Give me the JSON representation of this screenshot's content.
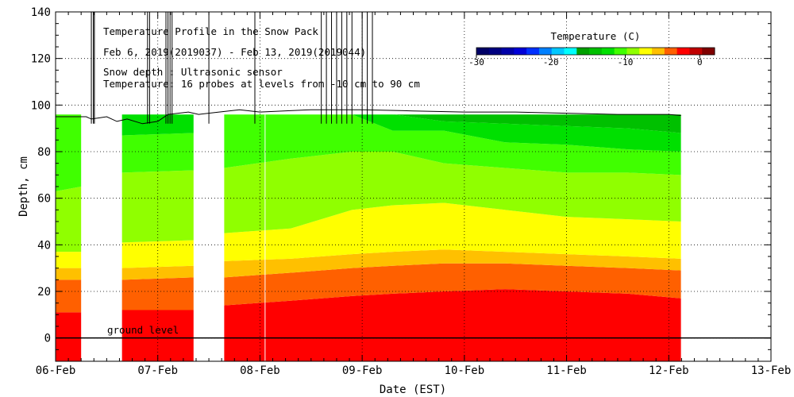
{
  "chart_data": {
    "type": "heatmap",
    "title": "Temperature Profile in the Snow Pack",
    "subtitle": "Feb  6, 2019(2019037) - Feb 13, 2019(2019044)",
    "notes": [
      "Snow depth : Ultrasonic sensor",
      "Temperature: 16 probes at levels from -10 cm to 90 cm"
    ],
    "xlabel": "Date (EST)",
    "ylabel": "Depth, cm",
    "x_tick_labels": [
      "06-Feb",
      "07-Feb",
      "08-Feb",
      "09-Feb",
      "10-Feb",
      "11-Feb",
      "12-Feb",
      "13-Feb"
    ],
    "xlim_days": [
      0,
      7
    ],
    "ylim": [
      -10,
      140
    ],
    "y_ticks": [
      0,
      20,
      40,
      60,
      80,
      100,
      120,
      140
    ],
    "grid": true,
    "ground_level_label": "ground level",
    "ground_level_cm": 0,
    "colorbar": {
      "title": "Temperature (C)",
      "range": [
        -30,
        2
      ],
      "ticks": [
        -30,
        -20,
        -10,
        0
      ],
      "colors": [
        "#000066",
        "#000080",
        "#0000a8",
        "#0000d8",
        "#0030ff",
        "#0080ff",
        "#00c8ff",
        "#00ffff",
        "#00a000",
        "#00c000",
        "#00e000",
        "#40ff00",
        "#90ff00",
        "#ffff00",
        "#ffc000",
        "#ff6000",
        "#ff0000",
        "#c00000",
        "#800000"
      ]
    },
    "temperature_bands": [
      {
        "range_c": "> 0",
        "color": "#ff0000"
      },
      {
        "range_c": "-2 to 0",
        "color": "#ff6000"
      },
      {
        "range_c": "-4 to -2",
        "color": "#ffc000"
      },
      {
        "range_c": "-6 to -4",
        "color": "#ffff00"
      },
      {
        "range_c": "-8 to -6",
        "color": "#90ff00"
      },
      {
        "range_c": "-10 to -8",
        "color": "#40ff00"
      },
      {
        "range_c": "-12 to -10",
        "color": "#00e000"
      },
      {
        "range_c": "-14 to -12",
        "color": "#00c000"
      },
      {
        "range_c": "-16 to -14",
        "color": "#00a000"
      }
    ],
    "data_gaps_days": [
      [
        0.25,
        0.65
      ],
      [
        1.35,
        1.65
      ]
    ],
    "data_end_day": 6.12,
    "profile_top_cm": 96,
    "boundary_order": [
      "red/orange",
      "orange/gold",
      "gold/yellow",
      "yellow/lightgreen",
      "lightgreen/green",
      "green/midgreen",
      "midgreen/darkgreen"
    ],
    "boundaries": [
      {
        "day": 0.0,
        "depths_cm": [
          11,
          25,
          30,
          37,
          63,
          96,
          96
        ]
      },
      {
        "day": 0.25,
        "depths_cm": [
          11,
          25,
          30,
          37,
          65,
          96,
          96
        ]
      },
      {
        "day": 0.65,
        "depths_cm": [
          12,
          25,
          30,
          41,
          71,
          87,
          96
        ]
      },
      {
        "day": 1.35,
        "depths_cm": [
          12,
          26,
          31,
          42,
          72,
          88,
          96
        ]
      },
      {
        "day": 1.65,
        "depths_cm": [
          14,
          26,
          33,
          45,
          73,
          96,
          96
        ]
      },
      {
        "day": 2.3,
        "depths_cm": [
          16,
          28,
          34,
          47,
          77,
          96,
          96
        ]
      },
      {
        "day": 2.9,
        "depths_cm": [
          18,
          30,
          36,
          55,
          80,
          96,
          96
        ]
      },
      {
        "day": 3.3,
        "depths_cm": [
          19,
          31,
          37,
          57,
          80,
          89,
          96
        ]
      },
      {
        "day": 3.8,
        "depths_cm": [
          20,
          32,
          38,
          58,
          75,
          89,
          93
        ]
      },
      {
        "day": 4.4,
        "depths_cm": [
          21,
          32,
          37,
          55,
          73,
          84,
          92
        ]
      },
      {
        "day": 5.0,
        "depths_cm": [
          20,
          31,
          36,
          52,
          71,
          83,
          91
        ]
      },
      {
        "day": 5.6,
        "depths_cm": [
          19,
          30,
          35,
          51,
          71,
          81,
          90
        ]
      },
      {
        "day": 6.12,
        "depths_cm": [
          17,
          29,
          34,
          50,
          70,
          80,
          88
        ]
      }
    ],
    "snow_depth_series": {
      "days": [
        0.0,
        0.3,
        0.35,
        0.5,
        0.6,
        0.7,
        0.85,
        1.0,
        1.1,
        1.3,
        1.4,
        1.6,
        1.8,
        2.0,
        2.5,
        3.0,
        3.5,
        4.0,
        4.5,
        5.0,
        5.5,
        6.0,
        6.12
      ],
      "depth_cm": [
        95,
        95,
        94,
        95,
        93,
        94,
        92,
        93,
        96,
        97,
        96,
        97,
        98,
        97,
        98,
        98,
        97.5,
        97,
        97,
        96.5,
        96,
        96,
        95.5
      ]
    },
    "snow_depth_spikes_days": [
      0.35,
      0.37,
      0.38,
      0.9,
      0.92,
      1.08,
      1.1,
      1.12,
      1.14,
      1.5,
      1.95,
      2.6,
      2.65,
      2.7,
      2.75,
      2.8,
      2.85,
      2.9,
      3.0,
      3.05,
      3.1
    ]
  }
}
